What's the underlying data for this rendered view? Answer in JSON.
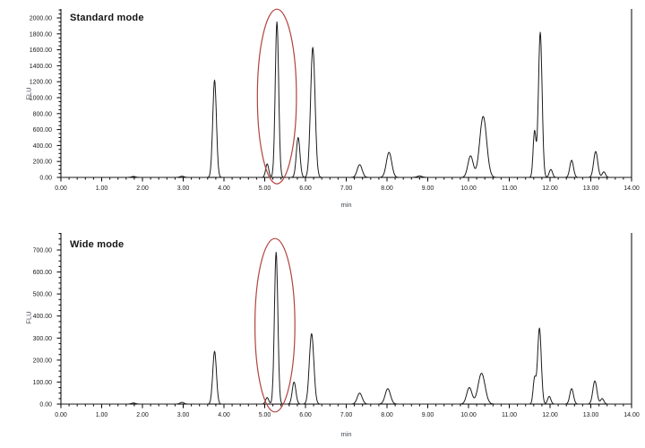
{
  "figure": {
    "description_units": "FLU vs min",
    "x_axis_title": "min",
    "y_axis_title": "FLU"
  },
  "chart_data": [
    {
      "type": "line",
      "title": "Standard mode",
      "xlabel": "min",
      "ylabel": "FLU",
      "xlim": [
        0,
        14
      ],
      "ylim": [
        0,
        2000
      ],
      "grid": false,
      "legend": "none",
      "x_minor_per_major": 4,
      "y_minor_per_major": 3,
      "xtick_labels": [
        "0.00",
        "1.00",
        "2.00",
        "3.00",
        "4.00",
        "5.00",
        "6.00",
        "7.00",
        "8.00",
        "9.00",
        "10.00",
        "11.00",
        "12.00",
        "13.00",
        "14.00"
      ],
      "ytick_labels": [
        "0.00",
        "200.00",
        "400.00",
        "600.00",
        "800.00",
        "1000.00",
        "1200.00",
        "1400.00",
        "1600.00",
        "1800.00",
        "2000.00"
      ],
      "colors": {
        "trace": "#1c1c1c",
        "axis": "#000000",
        "tick_label": "#1a1a1a",
        "ellipse": "#b2433d"
      },
      "peaks": [
        {
          "time_min": 1.78,
          "height_flu": 12,
          "sigma_min": 0.05
        },
        {
          "time_min": 2.97,
          "height_flu": 15,
          "sigma_min": 0.05
        },
        {
          "time_min": 3.77,
          "height_flu": 1220,
          "sigma_min": 0.045
        },
        {
          "time_min": 5.06,
          "height_flu": 170,
          "sigma_min": 0.038
        },
        {
          "time_min": 5.3,
          "height_flu": 1950,
          "sigma_min": 0.042
        },
        {
          "time_min": 5.82,
          "height_flu": 500,
          "sigma_min": 0.045
        },
        {
          "time_min": 6.18,
          "height_flu": 1630,
          "sigma_min": 0.055
        },
        {
          "time_min": 7.33,
          "height_flu": 160,
          "sigma_min": 0.06
        },
        {
          "time_min": 8.05,
          "height_flu": 315,
          "sigma_min": 0.065
        },
        {
          "time_min": 8.8,
          "height_flu": 18,
          "sigma_min": 0.06
        },
        {
          "time_min": 10.05,
          "height_flu": 270,
          "sigma_min": 0.065
        },
        {
          "time_min": 10.36,
          "height_flu": 765,
          "sigma_min": 0.085
        },
        {
          "time_min": 11.62,
          "height_flu": 575,
          "sigma_min": 0.035
        },
        {
          "time_min": 11.76,
          "height_flu": 1820,
          "sigma_min": 0.045
        },
        {
          "time_min": 12.02,
          "height_flu": 100,
          "sigma_min": 0.04
        },
        {
          "time_min": 12.53,
          "height_flu": 215,
          "sigma_min": 0.045
        },
        {
          "time_min": 13.12,
          "height_flu": 325,
          "sigma_min": 0.05
        },
        {
          "time_min": 13.32,
          "height_flu": 70,
          "sigma_min": 0.04
        }
      ],
      "highlight_ellipse": {
        "x_min": 4.82,
        "x_max": 5.78,
        "y_min": -80,
        "y_max": 2110
      }
    },
    {
      "type": "line",
      "title": "Wide mode",
      "xlabel": "min",
      "ylabel": "FLU",
      "xlim": [
        0,
        14
      ],
      "ylim": [
        0,
        700
      ],
      "grid": false,
      "legend": "none",
      "x_minor_per_major": 4,
      "y_minor_per_major": 3,
      "xtick_labels": [
        "0.00",
        "1.00",
        "2.00",
        "3.00",
        "4.00",
        "5.00",
        "6.00",
        "7.00",
        "8.00",
        "9.00",
        "10.00",
        "11.00",
        "12.00",
        "13.00",
        "14.00"
      ],
      "ytick_labels": [
        "0.00",
        "100.00",
        "200.00",
        "300.00",
        "400.00",
        "500.00",
        "600.00",
        "700.00"
      ],
      "colors": {
        "trace": "#1c1c1c",
        "axis": "#000000",
        "tick_label": "#1a1a1a",
        "ellipse": "#b2433d"
      },
      "peaks": [
        {
          "time_min": 1.78,
          "height_flu": 5,
          "sigma_min": 0.05
        },
        {
          "time_min": 2.97,
          "height_flu": 8,
          "sigma_min": 0.05
        },
        {
          "time_min": 3.77,
          "height_flu": 240,
          "sigma_min": 0.045
        },
        {
          "time_min": 5.06,
          "height_flu": 30,
          "sigma_min": 0.038
        },
        {
          "time_min": 5.28,
          "height_flu": 690,
          "sigma_min": 0.042
        },
        {
          "time_min": 5.72,
          "height_flu": 100,
          "sigma_min": 0.045
        },
        {
          "time_min": 6.15,
          "height_flu": 320,
          "sigma_min": 0.055
        },
        {
          "time_min": 7.33,
          "height_flu": 50,
          "sigma_min": 0.06
        },
        {
          "time_min": 8.02,
          "height_flu": 70,
          "sigma_min": 0.065
        },
        {
          "time_min": 10.02,
          "height_flu": 75,
          "sigma_min": 0.065
        },
        {
          "time_min": 10.32,
          "height_flu": 140,
          "sigma_min": 0.085
        },
        {
          "time_min": 11.62,
          "height_flu": 115,
          "sigma_min": 0.035
        },
        {
          "time_min": 11.74,
          "height_flu": 345,
          "sigma_min": 0.045
        },
        {
          "time_min": 11.98,
          "height_flu": 35,
          "sigma_min": 0.04
        },
        {
          "time_min": 12.53,
          "height_flu": 70,
          "sigma_min": 0.045
        },
        {
          "time_min": 13.1,
          "height_flu": 105,
          "sigma_min": 0.05
        },
        {
          "time_min": 13.28,
          "height_flu": 25,
          "sigma_min": 0.04
        }
      ],
      "highlight_ellipse": {
        "x_min": 4.76,
        "x_max": 5.74,
        "y_min": -36,
        "y_max": 752
      }
    }
  ]
}
